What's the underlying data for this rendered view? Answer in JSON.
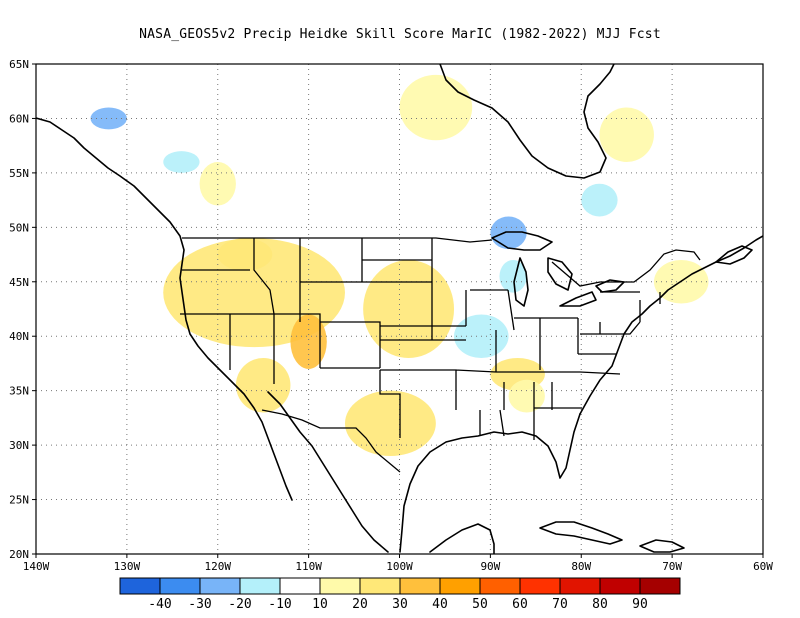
{
  "title": "NASA_GEOS5v2 Precip Heidke Skill Score MarIC (1982-2022) MJJ Fcst",
  "map": {
    "lon_range": [
      -140,
      -60
    ],
    "lat_range": [
      20,
      65
    ],
    "lat_ticks": [
      {
        "value": 65,
        "label": "65N"
      },
      {
        "value": 60,
        "label": "60N"
      },
      {
        "value": 55,
        "label": "55N"
      },
      {
        "value": 50,
        "label": "50N"
      },
      {
        "value": 45,
        "label": "45N"
      },
      {
        "value": 40,
        "label": "40N"
      },
      {
        "value": 35,
        "label": "35N"
      },
      {
        "value": 30,
        "label": "30N"
      },
      {
        "value": 25,
        "label": "25N"
      },
      {
        "value": 20,
        "label": "20N"
      }
    ],
    "lon_ticks": [
      {
        "value": -140,
        "label": "140W"
      },
      {
        "value": -130,
        "label": "130W"
      },
      {
        "value": -120,
        "label": "120W"
      },
      {
        "value": -110,
        "label": "110W"
      },
      {
        "value": -100,
        "label": "100W"
      },
      {
        "value": -90,
        "label": "90W"
      },
      {
        "value": -80,
        "label": "80W"
      },
      {
        "value": -70,
        "label": "70W"
      },
      {
        "value": -60,
        "label": "60W"
      }
    ],
    "grid": "dotted",
    "skill_regions": [
      {
        "lon": [
          -126,
          -106
        ],
        "lat": [
          39,
          49
        ],
        "level": 20
      },
      {
        "lon": [
          -104,
          -94
        ],
        "lat": [
          38,
          47
        ],
        "level": 20
      },
      {
        "lon": [
          -112,
          -108
        ],
        "lat": [
          37,
          42
        ],
        "level": 30
      },
      {
        "lon": [
          -120,
          -114
        ],
        "lat": [
          46,
          49
        ],
        "level": 20
      },
      {
        "lon": [
          -118,
          -112
        ],
        "lat": [
          33,
          38
        ],
        "level": 20
      },
      {
        "lon": [
          -106,
          -96
        ],
        "lat": [
          29,
          35
        ],
        "level": 20
      },
      {
        "lon": [
          -90,
          -84
        ],
        "lat": [
          35,
          38
        ],
        "level": 20
      },
      {
        "lon": [
          -88,
          -84
        ],
        "lat": [
          33,
          36
        ],
        "level": 10
      },
      {
        "lon": [
          -72,
          -66
        ],
        "lat": [
          43,
          47
        ],
        "level": 10
      },
      {
        "lon": [
          -122,
          -118
        ],
        "lat": [
          52,
          56
        ],
        "level": 10
      },
      {
        "lon": [
          -100,
          -92
        ],
        "lat": [
          58,
          64
        ],
        "level": 10
      },
      {
        "lon": [
          -78,
          -72
        ],
        "lat": [
          56,
          61
        ],
        "level": 10
      },
      {
        "lon": [
          -94,
          -88
        ],
        "lat": [
          38,
          42
        ],
        "level": -10
      },
      {
        "lon": [
          -89,
          -86
        ],
        "lat": [
          44,
          47
        ],
        "level": -10
      },
      {
        "lon": [
          -90,
          -86
        ],
        "lat": [
          48,
          51
        ],
        "level": -20
      },
      {
        "lon": [
          -134,
          -130
        ],
        "lat": [
          59,
          61
        ],
        "level": -20
      },
      {
        "lon": [
          -126,
          -122
        ],
        "lat": [
          55,
          57
        ],
        "level": -10
      },
      {
        "lon": [
          -80,
          -76
        ],
        "lat": [
          51,
          54
        ],
        "level": -10
      }
    ]
  },
  "colorbar": {
    "colors": [
      "#1e64dc",
      "#3c8cf0",
      "#78b4f8",
      "#b4f0fa",
      "#ffffff",
      "#fffaaa",
      "#ffe878",
      "#ffc03c",
      "#ffa000",
      "#ff6000",
      "#ff3200",
      "#e11400",
      "#c00000",
      "#a50000"
    ],
    "labels": [
      "-40",
      "-30",
      "-20",
      "-10",
      "10",
      "20",
      "30",
      "40",
      "50",
      "60",
      "70",
      "80",
      "90"
    ]
  }
}
